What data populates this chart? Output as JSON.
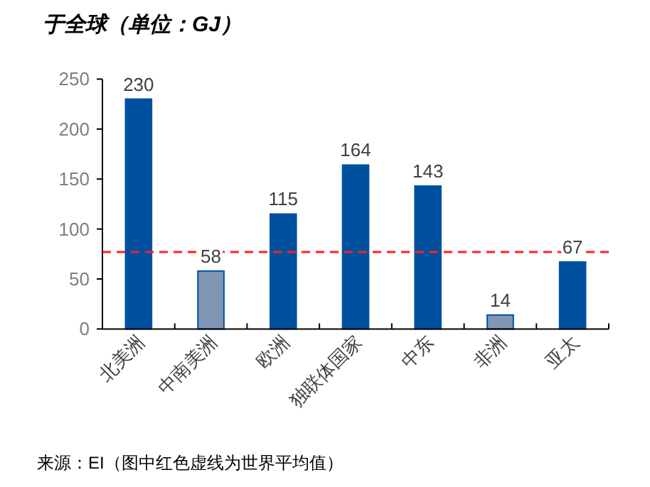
{
  "chart_data": {
    "type": "bar",
    "title": "于全球（单位：GJ）",
    "categories": [
      "北美洲",
      "中南美洲",
      "欧洲",
      "独联体国家",
      "中东",
      "非洲",
      "亚太"
    ],
    "values": [
      230,
      58,
      115,
      164,
      143,
      14,
      67
    ],
    "colors": [
      "#0050a0",
      "#8096b4",
      "#0050a0",
      "#0050a0",
      "#0050a0",
      "#8096b4",
      "#0050a0"
    ],
    "ylim": [
      0,
      250
    ],
    "yticks": [
      0,
      50,
      100,
      150,
      200,
      250
    ],
    "data_labels": true,
    "ref_lines": [
      {
        "axis": "y",
        "value": 77,
        "color": "#ff2020",
        "line_style": "dashed"
      }
    ],
    "annotations": [
      "来源：EI（图中红色虚线为世界平均值）"
    ]
  }
}
